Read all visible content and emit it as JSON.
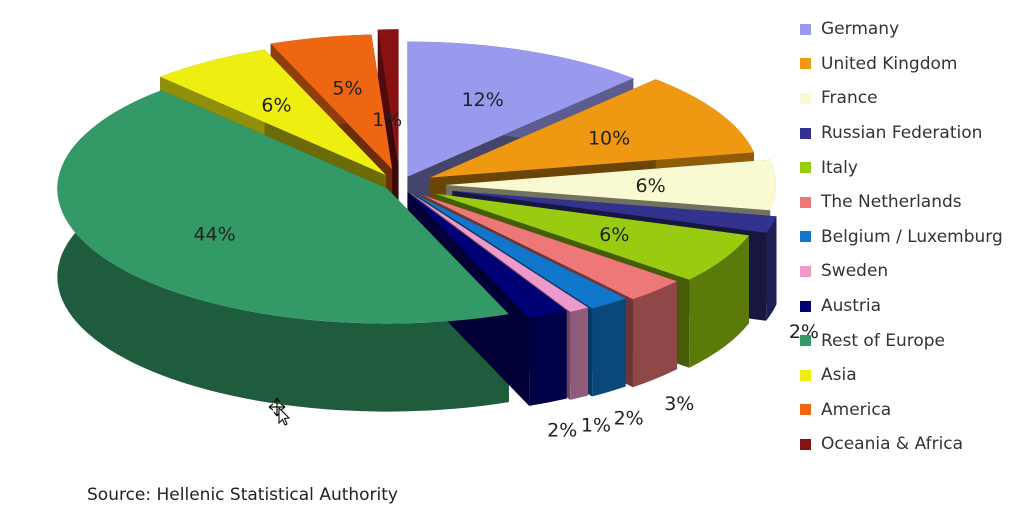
{
  "chart_data": {
    "type": "pie",
    "title": "",
    "categories": [
      "Germany",
      "United Kingdom",
      "France",
      "Russian Federation",
      "Italy",
      "The Netherlands",
      "Belgium / Luxemburg",
      "Sweden",
      "Austria",
      "Rest of Europe",
      "Asia",
      "America",
      "Oceania & Africa"
    ],
    "values": [
      12,
      10,
      6,
      2,
      6,
      3,
      2,
      1,
      2,
      44,
      6,
      5,
      1
    ],
    "labels": [
      "12%",
      "10%",
      "6%",
      "2%",
      "6%",
      "3%",
      "2%",
      "1%",
      "2%",
      "44%",
      "6%",
      "5%",
      "1%"
    ],
    "colors": [
      "#9999ee",
      "#ee9911",
      "#fafad2",
      "#33338f",
      "#99cc11",
      "#ee7777",
      "#1177cc",
      "#ee99cc",
      "#000077",
      "#339966",
      "#eeee11",
      "#ee6611",
      "#881111"
    ],
    "legend_position": "right",
    "exploded": true,
    "three_d": true
  },
  "source": "Source: Hellenic Statistical Authority",
  "cursor_icon": "move-cursor-icon"
}
